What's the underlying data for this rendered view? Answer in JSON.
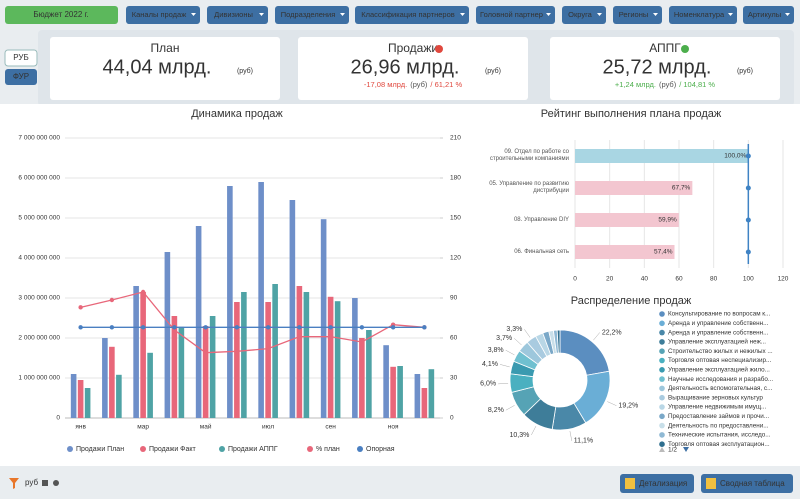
{
  "filters": {
    "budget": "Бюджет 2022 г.",
    "dropdowns": [
      "Каналы продаж",
      "Дивизионы",
      "Подразделения",
      "Классификация партнеров",
      "Головной партнер",
      "Округа",
      "Регионы",
      "Номенклатура",
      "Артикулы"
    ]
  },
  "currency_toggle": [
    "РУБ",
    "ФУР"
  ],
  "kpis": [
    {
      "title": "План",
      "value": "44,04 млрд.",
      "unit": "(руб)"
    },
    {
      "title": "Продажи",
      "value": "26,96 млрд.",
      "unit": "(руб)",
      "delta": "-17,08 млрд.",
      "delta_unit": "(руб)",
      "delta_pct": "/ 61,21 %"
    },
    {
      "title": "АППГ",
      "value": "25,72 млрд.",
      "unit": "(руб)",
      "delta": "+1,24 млрд.",
      "delta_unit": "(руб)",
      "delta_pct": "/ 104,81 %"
    }
  ],
  "chart_data": [
    {
      "type": "bar",
      "title": "Динамика продаж",
      "categories": [
        "янв",
        null,
        "мар",
        null,
        "май",
        null,
        "июл",
        null,
        "сен",
        null,
        "ноя",
        null
      ],
      "ylim": [
        0,
        7000000000
      ],
      "yticks": [
        {
          "value": 0,
          "label": "0"
        },
        {
          "value": 1000000000,
          "label": "1 000 000 000"
        },
        {
          "value": 2000000000,
          "label": "2 000 000 000"
        },
        {
          "value": 3000000000,
          "label": "3 000 000 000"
        },
        {
          "value": 4000000000,
          "label": "4 000 000 000"
        },
        {
          "value": 5000000000,
          "label": "5 000 000 000"
        },
        {
          "value": 6000000000,
          "label": "6 000 000 000"
        },
        {
          "value": 7000000000,
          "label": "7 000 000 000"
        }
      ],
      "y2lim": [
        0,
        210
      ],
      "y2ticks": [
        0,
        30,
        60,
        90,
        120,
        150,
        180,
        210
      ],
      "grid": true,
      "series": [
        {
          "name": "Продажи План",
          "color": "#6e8fc9",
          "values": [
            1100000000,
            2000000000,
            3300000000,
            4150000000,
            4800000000,
            5800000000,
            5900000000,
            5450000000,
            4970000000,
            3000000000,
            1820000000,
            1100000000
          ]
        },
        {
          "name": "Продажи Факт",
          "color": "#e8677a",
          "values": [
            950000000,
            1780000000,
            3150000000,
            2550000000,
            2300000000,
            2900000000,
            2900000000,
            3300000000,
            3030000000,
            2000000000,
            1280000000,
            750000000
          ]
        },
        {
          "name": "Продажи АППГ",
          "color": "#4fa3a5",
          "values": [
            750000000,
            1080000000,
            1630000000,
            2280000000,
            2550000000,
            3150000000,
            3350000000,
            3150000000,
            2920000000,
            2200000000,
            1300000000,
            1220000000
          ]
        },
        {
          "name": "% план",
          "type": "line",
          "axis": "y2",
          "color": "#e8677a",
          "values": [
            83,
            88.5,
            94.5,
            66,
            49,
            50,
            52,
            61,
            61,
            57,
            70,
            68
          ]
        },
        {
          "name": "Опорная",
          "type": "line",
          "axis": "y2",
          "color": "#4a7fc1",
          "values": [
            68,
            68,
            68,
            68,
            68,
            68,
            68,
            68,
            68,
            68,
            68,
            68
          ]
        }
      ]
    },
    {
      "type": "hbar",
      "title": "Рейтинг выполнения плана продаж",
      "categories": [
        "09. Отдел по работе со строительными компаниями",
        "05. Управление по развитию дистрибуции",
        "08. Управление DIY",
        "06. Финальная сеть"
      ],
      "values": [
        100,
        67.7,
        59.9,
        57.4
      ],
      "value_labels": [
        "100,0%",
        "67,7%",
        "59,9%",
        "57,4%"
      ],
      "colors": [
        "#a9d6e3",
        "#f3c6d0",
        "#f3c6d0",
        "#f3c6d0"
      ],
      "reference": 100,
      "reference_color": "#3f83c4",
      "xlim": [
        0,
        120
      ],
      "xticks": [
        0,
        20,
        40,
        60,
        80,
        100,
        120
      ],
      "grid": true
    },
    {
      "type": "pie",
      "title": "Распределение продаж",
      "categories": [
        "Консультирование по вопросам к...",
        "Аренда и управление собственн...",
        "Аренда и управление собственн...",
        "Управление эксплуатацией неж...",
        "Строительство жилых и нежилых ...",
        "Торговля оптовая неспециализир...",
        "Управление эксплуатацией жило...",
        "Научные исследования и разрабо...",
        "Деятельность вспомогательная, с...",
        "Выращивание зерновых культур",
        "Управление недвижимым имущ...",
        "Предоставление займов и прочи...",
        "Деятельность по предоставлени...",
        "Технические испытания, исследо...",
        "Торговля оптовая эксплуатацион..."
      ],
      "values": [
        22.2,
        19.2,
        11.1,
        10.3,
        8.2,
        6.0,
        4.1,
        3.8,
        3.7,
        3.3,
        2.5,
        2.0,
        1.5,
        1.2,
        0.9
      ],
      "value_labels": [
        "22,2%",
        "19,2%",
        "11,1%",
        "10,3%",
        "8,2%",
        "6,0%",
        "4,1%",
        "3,8%",
        "3,7%",
        "3,3%",
        null,
        null,
        null,
        null,
        null
      ],
      "colors": [
        "#5b8ec0",
        "#6aaed6",
        "#4a88a8",
        "#3e7d99",
        "#56a3b5",
        "#4ab0c0",
        "#3a9ab0",
        "#6fc0d0",
        "#9dc7dc",
        "#a9cbe0",
        "#b9d7e6",
        "#7aa8c8",
        "#c8dfe9",
        "#8fb9d4",
        "#2f6f8f"
      ],
      "legend_page": "1/2"
    }
  ],
  "footer": {
    "currency": "руб",
    "buttons": [
      "Детализация",
      "Сводная таблица"
    ]
  }
}
